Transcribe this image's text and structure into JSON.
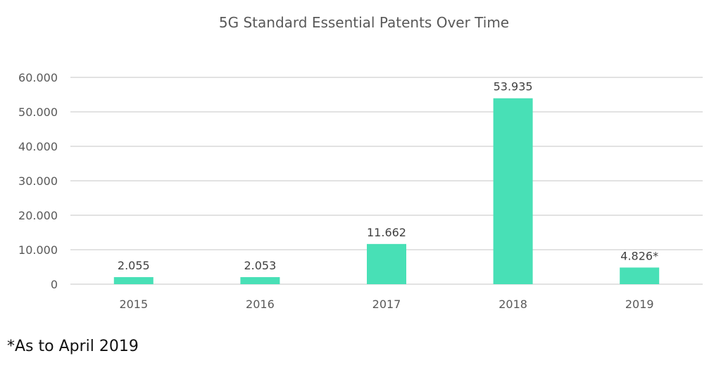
{
  "chart_data": {
    "type": "bar",
    "title": "5G Standard Essential Patents Over Time",
    "categories": [
      "2015",
      "2016",
      "2017",
      "2018",
      "2019"
    ],
    "values": [
      2055,
      2053,
      11662,
      53935,
      4826
    ],
    "data_labels": [
      "2.055",
      "2.053",
      "11.662",
      "53.935",
      "4.826*"
    ],
    "ylim": [
      0,
      60000
    ],
    "yticks": [
      0,
      10000,
      20000,
      30000,
      40000,
      50000,
      60000
    ],
    "ytick_labels": [
      "0",
      "10.000",
      "20.000",
      "30.000",
      "40.000",
      "50.000",
      "60.000"
    ],
    "xlabel": "",
    "ylabel": "",
    "grid": true,
    "legend": "none",
    "bar_color": "#48e0b6",
    "grid_color": "#d9d9d9"
  },
  "footnote": "*As to April 2019"
}
